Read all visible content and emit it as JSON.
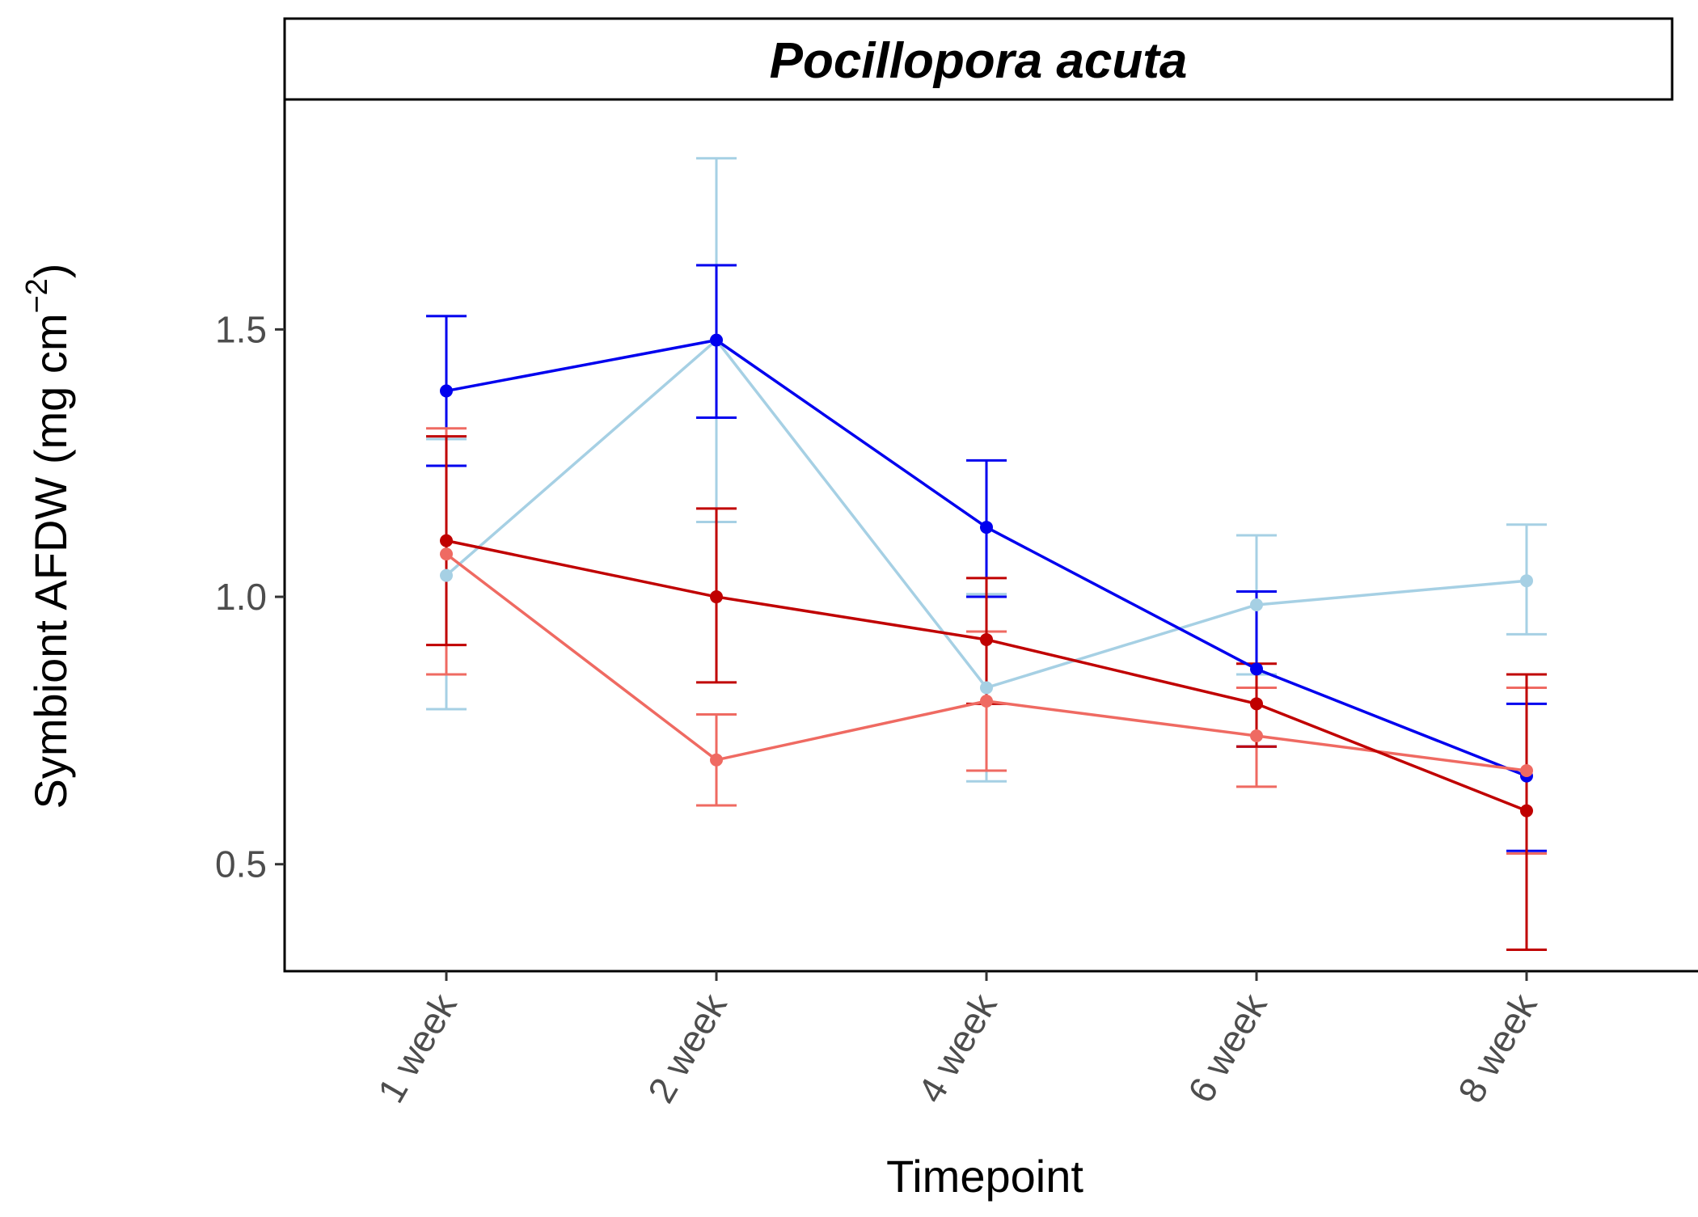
{
  "chart_data": {
    "type": "line",
    "title": "Pocillopora acuta",
    "xlabel": "Timepoint",
    "ylabel": "Symbiont AFDW (mg cm",
    "ylabel_sup": "−2",
    "ylabel_close": ")",
    "categories": [
      "1 week",
      "2 week",
      "4 week",
      "6 week",
      "8 week"
    ],
    "ylim": [
      0.3,
      1.93
    ],
    "yticks": [
      0.5,
      1.0,
      1.5
    ],
    "ytick_labels": [
      "0.5",
      "1.0",
      "1.5"
    ],
    "grid": false,
    "legend": "none",
    "series": [
      {
        "color": "#A6D0E4",
        "values": [
          1.04,
          1.48,
          0.83,
          0.985,
          1.03
        ],
        "lower": [
          0.79,
          1.14,
          0.655,
          0.855,
          0.93
        ],
        "upper": [
          1.295,
          1.82,
          1.005,
          1.115,
          1.135
        ]
      },
      {
        "color": "#0000EE",
        "values": [
          1.385,
          1.48,
          1.13,
          0.865,
          0.665
        ],
        "lower": [
          1.245,
          1.335,
          1.0,
          0.72,
          0.525
        ],
        "upper": [
          1.525,
          1.62,
          1.255,
          1.01,
          0.8
        ]
      },
      {
        "color": "#EF6A62",
        "values": [
          1.08,
          0.695,
          0.805,
          0.74,
          0.675
        ],
        "lower": [
          0.855,
          0.61,
          0.675,
          0.645,
          0.52
        ],
        "upper": [
          1.315,
          0.78,
          0.935,
          0.83,
          0.83
        ]
      },
      {
        "color": "#C00000",
        "values": [
          1.105,
          1.0,
          0.92,
          0.8,
          0.6
        ],
        "lower": [
          0.91,
          0.84,
          0.8,
          0.72,
          0.34
        ],
        "upper": [
          1.3,
          1.165,
          1.035,
          0.875,
          0.855
        ]
      }
    ]
  }
}
